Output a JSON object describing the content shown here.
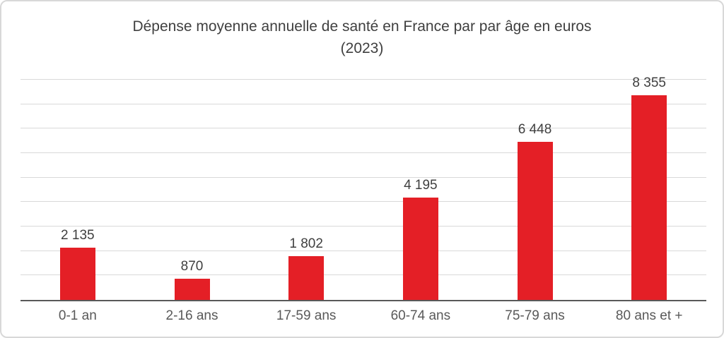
{
  "chart_data": {
    "type": "bar",
    "title": "Dépense moyenne annuelle de santé en France par par âge en euros",
    "subtitle": "(2023)",
    "categories": [
      "0-1 an",
      "2-16 ans",
      "17-59 ans",
      "60-74 ans",
      "75-79 ans",
      "80 ans et +"
    ],
    "values": [
      2135,
      870,
      1802,
      4195,
      6448,
      8355
    ],
    "value_labels": [
      "2 135",
      "870",
      "1 802",
      "4 195",
      "6 448",
      "8 355"
    ],
    "xlabel": "",
    "ylabel": "",
    "ylim": [
      0,
      9000
    ],
    "gridline_step": 1000,
    "grid": true,
    "legend_position": "none",
    "colors": {
      "bar": "#e41f26",
      "gridline": "#d9d9d9",
      "axis": "#595959",
      "title": "#404040",
      "value_label": "#3f3f3f",
      "category_label": "#595959",
      "window_border": "#d8d8d8"
    }
  }
}
